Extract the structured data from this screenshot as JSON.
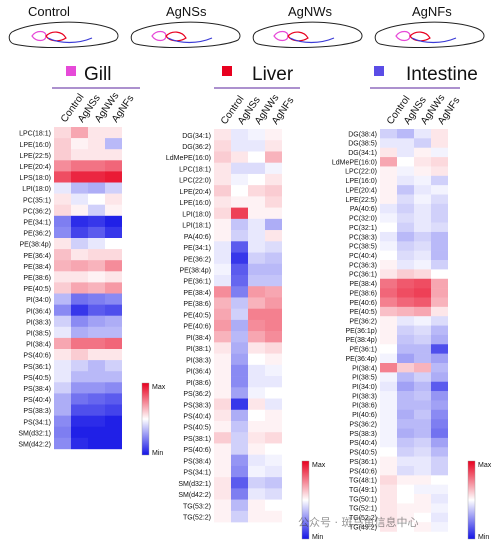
{
  "fish_labels": [
    "Control",
    "AgNSs",
    "AgNWs",
    "AgNFs"
  ],
  "columns": [
    "Control",
    "AgNSs",
    "AgNWs",
    "AgNFs"
  ],
  "colorbar": {
    "max_label": "Max",
    "min_label": "Min",
    "high_color": "#e8001f",
    "mid_color": "#ffffff",
    "low_color": "#1414e6"
  },
  "panels": [
    {
      "title": "Gill",
      "marker_color": "#e64ad8",
      "rows": [
        "LPC(18:1)",
        "LPE(16:0)",
        "LPE(22:5)",
        "LPE(20:4)",
        "LPS(18:0)",
        "LPI(18:0)",
        "PC(35:1)",
        "PC(36:2)",
        "PE(34:1)",
        "PE(36:2)",
        "PE(38:4p)",
        "PE(36:4)",
        "PE(38:4)",
        "PE(38:6)",
        "PE(40:5)",
        "PI(34:0)",
        "PI(36:4)",
        "PI(38:3)",
        "PI(38:5)",
        "PI(38:4)",
        "PS(40:6)",
        "PS(36:1)",
        "PS(40:5)",
        "PS(38:4)",
        "PS(40:4)",
        "PS(38:3)",
        "PS(34:1)",
        "SM(d32:1)",
        "SM(d42:2)"
      ],
      "values": [
        [
          0.15,
          0.35,
          0.1,
          0.1
        ],
        [
          0.2,
          0.05,
          0.1,
          -0.3
        ],
        [
          0.2,
          0.1,
          0.1,
          0.1
        ],
        [
          0.45,
          0.55,
          0.55,
          0.6
        ],
        [
          0.7,
          0.85,
          0.85,
          0.9
        ],
        [
          -0.1,
          -0.3,
          -0.35,
          -0.2
        ],
        [
          0.1,
          -0.1,
          0.0,
          0.1
        ],
        [
          0.15,
          0.05,
          -0.2,
          0.05
        ],
        [
          -0.55,
          -0.9,
          -0.85,
          -0.95
        ],
        [
          -0.5,
          -0.8,
          -0.7,
          -0.85
        ],
        [
          0.1,
          -0.2,
          -0.1,
          0.0
        ],
        [
          0.25,
          0.1,
          0.15,
          0.15
        ],
        [
          0.3,
          0.35,
          0.3,
          0.45
        ],
        [
          0.1,
          0.1,
          0.05,
          0.1
        ],
        [
          0.2,
          0.35,
          0.3,
          0.4
        ],
        [
          -0.3,
          -0.6,
          -0.55,
          -0.5
        ],
        [
          -0.5,
          -0.85,
          -0.7,
          -0.75
        ],
        [
          -0.2,
          -0.5,
          -0.4,
          -0.35
        ],
        [
          -0.1,
          -0.35,
          -0.3,
          -0.3
        ],
        [
          0.35,
          0.55,
          0.55,
          0.6
        ],
        [
          0.1,
          0.2,
          0.1,
          0.1
        ],
        [
          -0.1,
          -0.2,
          -0.3,
          -0.2
        ],
        [
          -0.1,
          -0.3,
          -0.3,
          -0.3
        ],
        [
          -0.2,
          -0.45,
          -0.45,
          -0.5
        ],
        [
          -0.35,
          -0.6,
          -0.65,
          -0.7
        ],
        [
          -0.35,
          -0.75,
          -0.75,
          -0.8
        ],
        [
          -0.5,
          -0.9,
          -0.9,
          -0.95
        ],
        [
          -0.55,
          -0.95,
          -0.95,
          -0.95
        ],
        [
          -0.5,
          -0.9,
          -0.95,
          -0.95
        ]
      ]
    },
    {
      "title": "Liver",
      "marker_color": "#e8001f",
      "rows": [
        "DG(34:1)",
        "DG(36:2)",
        "LdMePE(16:0)",
        "LPC(18:1)",
        "LPC(22:0)",
        "LPE(20:4)",
        "LPE(16:0)",
        "LPI(18:0)",
        "LPI(18:1)",
        "PA(40:6)",
        "PE(34:1)",
        "PE(36:2)",
        "PE(38:4p)",
        "PE(36:1)",
        "PE(38:4)",
        "PE(38:6)",
        "PE(40:5)",
        "PE(40:6)",
        "PI(38:4)",
        "PI(38:1)",
        "PI(38:3)",
        "PI(36:4)",
        "PI(38:6)",
        "PS(36:2)",
        "PS(38:3)",
        "PS(40:4)",
        "PS(40:5)",
        "PS(38:1)",
        "PS(40:6)",
        "PS(38:4)",
        "PS(34:1)",
        "SM(d32:1)",
        "SM(d42:2)",
        "TG(53:2)",
        "TG(52:2)"
      ],
      "values": [
        [
          0.1,
          -0.1,
          -0.05,
          0.05
        ],
        [
          0.15,
          -0.1,
          -0.1,
          0.1
        ],
        [
          0.2,
          0.1,
          0.0,
          0.3
        ],
        [
          0.1,
          -0.15,
          -0.15,
          -0.05
        ],
        [
          0.1,
          -0.05,
          0.0,
          0.1
        ],
        [
          0.2,
          0.0,
          0.15,
          0.2
        ],
        [
          0.1,
          0.05,
          0.05,
          0.15
        ],
        [
          0.15,
          0.75,
          0.05,
          0.05
        ],
        [
          0.05,
          -0.25,
          -0.1,
          -0.35
        ],
        [
          0.05,
          -0.2,
          -0.1,
          0.1
        ],
        [
          -0.1,
          -0.7,
          -0.1,
          -0.15
        ],
        [
          -0.1,
          -0.85,
          -0.2,
          -0.25
        ],
        [
          -0.05,
          -0.7,
          -0.3,
          -0.3
        ],
        [
          -0.1,
          -0.65,
          -0.25,
          -0.25
        ],
        [
          0.45,
          -0.55,
          0.4,
          0.35
        ],
        [
          0.3,
          -0.25,
          0.3,
          0.4
        ],
        [
          0.35,
          -0.2,
          0.5,
          0.5
        ],
        [
          0.4,
          -0.35,
          0.45,
          0.5
        ],
        [
          0.3,
          -0.3,
          0.35,
          0.45
        ],
        [
          0.1,
          -0.35,
          0.1,
          0.15
        ],
        [
          0.05,
          -0.4,
          0.0,
          0.05
        ],
        [
          0.05,
          -0.5,
          -0.1,
          -0.05
        ],
        [
          0.05,
          -0.5,
          -0.1,
          -0.1
        ],
        [
          0.05,
          -0.4,
          -0.05,
          0.0
        ],
        [
          0.15,
          -0.85,
          0.1,
          -0.1
        ],
        [
          0.1,
          -0.35,
          0.0,
          0.05
        ],
        [
          0.05,
          -0.25,
          0.05,
          0.05
        ],
        [
          0.2,
          -0.2,
          0.1,
          0.15
        ],
        [
          0.05,
          -0.2,
          0.05,
          0.0
        ],
        [
          0.05,
          -0.45,
          -0.1,
          -0.05
        ],
        [
          0.05,
          -0.5,
          -0.05,
          -0.1
        ],
        [
          0.1,
          -0.7,
          -0.2,
          -0.25
        ],
        [
          0.1,
          -0.55,
          -0.1,
          -0.15
        ],
        [
          0.05,
          -0.3,
          0.05,
          0.0
        ],
        [
          0.05,
          -0.2,
          0.05,
          0.05
        ]
      ]
    },
    {
      "title": "Intestine",
      "marker_color": "#5a4de6",
      "rows": [
        "DG(38:4)",
        "DG(38:5)",
        "DG(34:1)",
        "LdMePE(16:0)",
        "LPC(22:0)",
        "LPE(16:0)",
        "LPE(20:4)",
        "LPE(22:5)",
        "PA(40:6)",
        "PC(32:0)",
        "PC(32:1)",
        "PC(38:3)",
        "PC(38:5)",
        "PC(40:4)",
        "PC(36:3)",
        "PC(36:1)",
        "PE(38:4)",
        "PE(38:6)",
        "PE(40:6)",
        "PE(40:5)",
        "PE(36:2)",
        "PE(36:1p)",
        "PE(38:4p)",
        "PE(36:1)",
        "PE(36:4p)",
        "PI(38:4)",
        "PI(38:5)",
        "PI(34:0)",
        "PI(38:3)",
        "PI(38:6)",
        "PI(40:6)",
        "PS(36:2)",
        "PS(38:3)",
        "PS(40:4)",
        "PS(40:5)",
        "PS(36:1)",
        "PS(40:6)",
        "TG(48:1)",
        "TG(49:1)",
        "TG(50:1)",
        "TG(52:1)",
        "TG(52:2)",
        "TG(49:2)"
      ],
      "values": [
        [
          -0.2,
          -0.3,
          -0.1,
          0.1
        ],
        [
          -0.1,
          -0.1,
          -0.2,
          0.1
        ],
        [
          0.1,
          -0.1,
          0.05,
          -0.05
        ],
        [
          0.35,
          0.0,
          0.1,
          0.15
        ],
        [
          0.05,
          -0.05,
          0.05,
          0.1
        ],
        [
          0.05,
          -0.1,
          -0.05,
          -0.2
        ],
        [
          0.05,
          -0.25,
          -0.1,
          -0.05
        ],
        [
          0.05,
          -0.15,
          -0.05,
          -0.15
        ],
        [
          -0.1,
          -0.2,
          -0.1,
          -0.2
        ],
        [
          -0.05,
          -0.15,
          -0.1,
          -0.2
        ],
        [
          0.0,
          -0.2,
          -0.1,
          -0.15
        ],
        [
          -0.1,
          -0.3,
          -0.2,
          -0.3
        ],
        [
          -0.05,
          -0.2,
          -0.15,
          -0.3
        ],
        [
          0.0,
          -0.15,
          -0.1,
          -0.3
        ],
        [
          0.05,
          -0.1,
          -0.05,
          -0.2
        ],
        [
          0.1,
          0.2,
          0.15,
          0.0
        ],
        [
          0.55,
          0.65,
          0.7,
          0.35
        ],
        [
          0.6,
          0.7,
          0.75,
          0.35
        ],
        [
          0.5,
          0.6,
          0.65,
          0.3
        ],
        [
          0.25,
          0.3,
          0.35,
          0.1
        ],
        [
          0.05,
          -0.1,
          -0.05,
          -0.15
        ],
        [
          0.05,
          -0.2,
          -0.15,
          -0.3
        ],
        [
          0.05,
          -0.25,
          -0.2,
          -0.35
        ],
        [
          0.0,
          -0.3,
          -0.3,
          -0.75
        ],
        [
          -0.05,
          -0.4,
          -0.3,
          -0.4
        ],
        [
          0.5,
          0.2,
          0.3,
          -0.3
        ],
        [
          -0.05,
          -0.3,
          -0.2,
          -0.35
        ],
        [
          -0.1,
          -0.4,
          -0.3,
          -0.7
        ],
        [
          -0.05,
          -0.3,
          -0.25,
          -0.45
        ],
        [
          -0.05,
          -0.3,
          -0.3,
          -0.4
        ],
        [
          -0.05,
          -0.35,
          -0.25,
          -0.5
        ],
        [
          -0.05,
          -0.3,
          -0.3,
          -0.55
        ],
        [
          -0.05,
          -0.35,
          -0.3,
          -0.6
        ],
        [
          -0.05,
          -0.25,
          -0.2,
          -0.4
        ],
        [
          0.0,
          -0.2,
          -0.15,
          -0.3
        ],
        [
          0.05,
          -0.1,
          -0.1,
          -0.2
        ],
        [
          0.05,
          -0.15,
          -0.1,
          -0.2
        ],
        [
          0.15,
          0.05,
          0.05,
          0.0
        ],
        [
          0.1,
          0.0,
          -0.05,
          -0.05
        ],
        [
          0.1,
          0.0,
          0.05,
          -0.1
        ],
        [
          0.1,
          0.05,
          0.05,
          -0.05
        ],
        [
          0.1,
          0.05,
          0.0,
          -0.1
        ],
        [
          0.1,
          0.0,
          0.05,
          -0.05
        ]
      ]
    }
  ],
  "watermark": "公众号 · 斑马鱼信息中心"
}
